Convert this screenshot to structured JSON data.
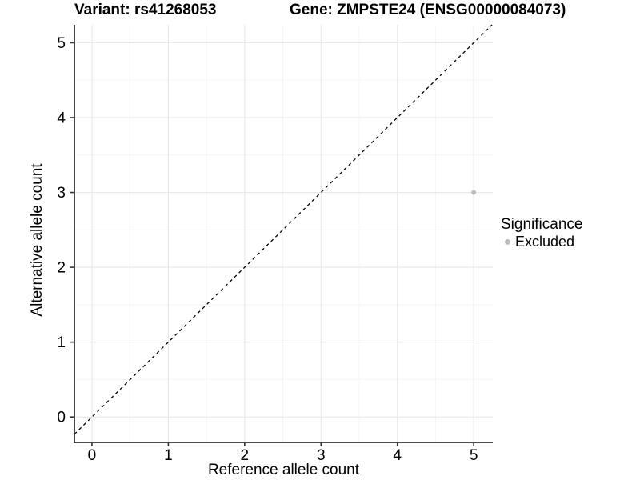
{
  "chart_data": {
    "type": "scatter",
    "title_left": "Variant: rs41268053",
    "title_right": "Gene: ZMPSTE24 (ENSG00000084073)",
    "xlabel": "Reference allele count",
    "ylabel": "Alternative allele count",
    "x_ticks": [
      0,
      1,
      2,
      3,
      4,
      5
    ],
    "y_ticks": [
      0,
      1,
      2,
      3,
      4,
      5
    ],
    "minor_ticks_x": [
      0.5,
      1.5,
      2.5,
      3.5,
      4.5
    ],
    "minor_ticks_y": [
      0.5,
      1.5,
      2.5,
      3.5,
      4.5
    ],
    "xlim": [
      -0.23,
      5.25
    ],
    "ylim": [
      -0.34,
      5.24
    ],
    "grid": true,
    "points": [
      {
        "x": 5,
        "y": 3,
        "significance": "Excluded"
      }
    ],
    "identity_line": {
      "style": "dashed",
      "slope": 1,
      "intercept": 0,
      "color": "#000000"
    },
    "legend": {
      "title": "Significance",
      "position": "right",
      "entries": [
        {
          "label": "Excluded",
          "color": "#bebebe"
        }
      ]
    },
    "colors": {
      "point": "#bebebe",
      "grid_major": "#e9e9e9",
      "grid_minor": "#f5f5f5",
      "axis": "#333333",
      "text": "#000000",
      "background": "#ffffff"
    }
  }
}
